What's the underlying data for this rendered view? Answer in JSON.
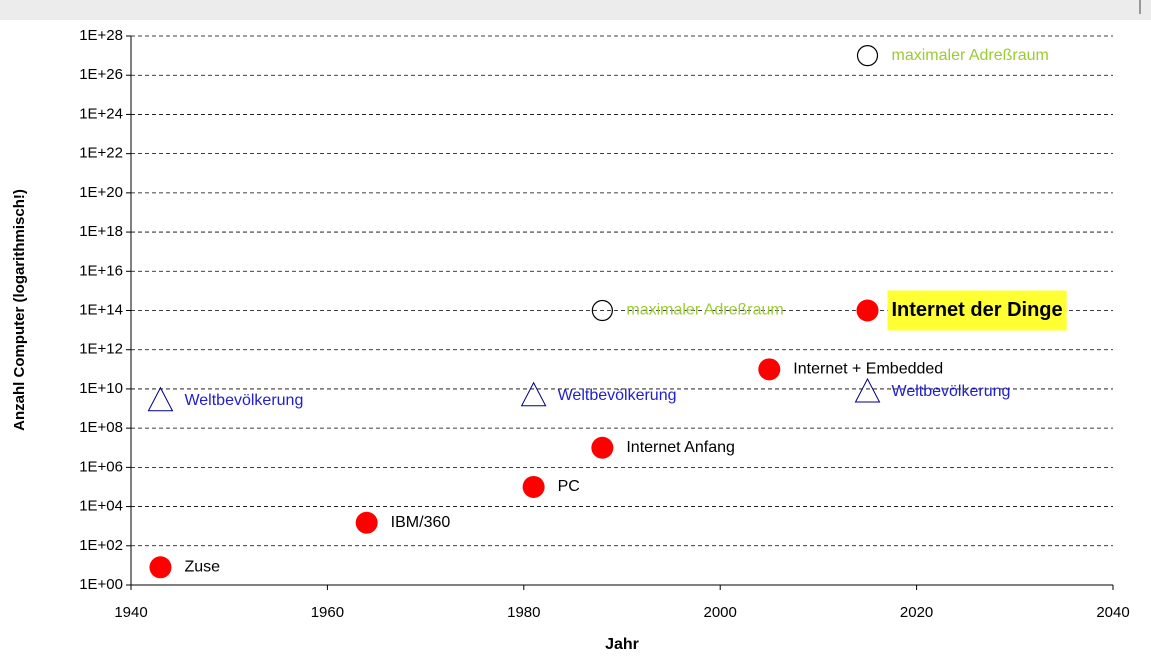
{
  "chart_data": {
    "type": "scatter",
    "x_label": "Jahr",
    "y_label": "Anzahl Computer (logarithmisch!)",
    "xlim": [
      1940,
      2040
    ],
    "xticks": [
      1940,
      1960,
      1980,
      2000,
      2020,
      2040
    ],
    "ylim": [
      1,
      1e+28
    ],
    "yticks": [
      {
        "value": 1,
        "label": "1E+00"
      },
      {
        "value": 100,
        "label": "1E+02"
      },
      {
        "value": 10000,
        "label": "1E+04"
      },
      {
        "value": 1000000,
        "label": "1E+06"
      },
      {
        "value": 100000000,
        "label": "1E+08"
      },
      {
        "value": 10000000000,
        "label": "1E+10"
      },
      {
        "value": 1000000000000,
        "label": "1E+12"
      },
      {
        "value": 100000000000000.0,
        "label": "1E+14"
      },
      {
        "value": 1e+16,
        "label": "1E+16"
      },
      {
        "value": 1e+18,
        "label": "1E+18"
      },
      {
        "value": 1e+20,
        "label": "1E+20"
      },
      {
        "value": 1e+22,
        "label": "1E+22"
      },
      {
        "value": 1e+24,
        "label": "1E+24"
      },
      {
        "value": 1e+26,
        "label": "1E+26"
      },
      {
        "value": 1e+28,
        "label": "1E+28"
      }
    ],
    "log_y": true,
    "grid": true,
    "series": [
      {
        "marker": "dot",
        "color": "#ff0000",
        "label_color": "#000000",
        "x": [
          1943,
          1964,
          1981,
          1988,
          2005,
          2015
        ],
        "values": [
          8,
          1500,
          100000,
          10000000,
          100000000000,
          100000000000000.0
        ],
        "labels": [
          "Zuse",
          "IBM/360",
          "PC",
          "Internet Anfang",
          "Internet + Embedded",
          "Internet der Dinge"
        ],
        "highlight": {
          "index": 5,
          "color": "#ffff33"
        }
      },
      {
        "marker": "triangle",
        "color": "#000080",
        "label_color": "#2020d0",
        "x": [
          1943,
          1981,
          2015
        ],
        "values": [
          2500000000,
          4500000000,
          7000000000
        ],
        "labels": [
          "Weltbevölkerung",
          "Weltbevölkerung",
          "Weltbevölkerung"
        ]
      },
      {
        "marker": "ring",
        "color": "#000000",
        "label_color": "#99cc33",
        "x": [
          1988,
          2015
        ],
        "values": [
          100000000000000.0,
          1e+27
        ],
        "labels": [
          "maximaler Adreßraum",
          "maximaler Adreßraum"
        ]
      }
    ]
  }
}
